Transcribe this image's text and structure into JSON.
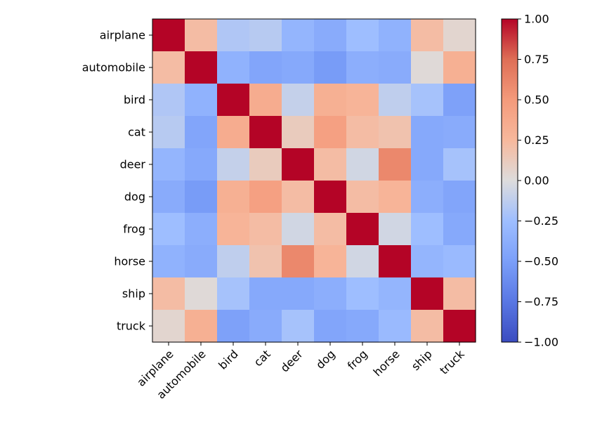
{
  "chart_data": {
    "type": "heatmap",
    "title": "",
    "xlabel": "",
    "ylabel": "",
    "categories": [
      "airplane",
      "automobile",
      "bird",
      "cat",
      "deer",
      "dog",
      "frog",
      "horse",
      "ship",
      "truck"
    ],
    "values": [
      [
        1.0,
        0.22,
        -0.18,
        -0.15,
        -0.32,
        -0.4,
        -0.25,
        -0.35,
        0.22,
        0.05
      ],
      [
        0.22,
        1.0,
        -0.35,
        -0.45,
        -0.42,
        -0.52,
        -0.38,
        -0.4,
        0.02,
        0.32
      ],
      [
        -0.18,
        -0.35,
        1.0,
        0.35,
        -0.1,
        0.32,
        0.28,
        -0.12,
        -0.22,
        -0.48
      ],
      [
        -0.15,
        -0.45,
        0.35,
        1.0,
        0.12,
        0.45,
        0.22,
        0.18,
        -0.42,
        -0.4
      ],
      [
        -0.32,
        -0.42,
        -0.1,
        0.12,
        1.0,
        0.22,
        -0.05,
        0.6,
        -0.42,
        -0.22
      ],
      [
        -0.4,
        -0.52,
        0.32,
        0.45,
        0.22,
        1.0,
        0.22,
        0.28,
        -0.38,
        -0.45
      ],
      [
        -0.25,
        -0.38,
        0.28,
        0.22,
        -0.05,
        0.22,
        1.0,
        -0.05,
        -0.25,
        -0.42
      ],
      [
        -0.35,
        -0.4,
        -0.12,
        0.18,
        0.6,
        0.28,
        -0.05,
        1.0,
        -0.32,
        -0.28
      ],
      [
        0.22,
        0.02,
        -0.22,
        -0.42,
        -0.42,
        -0.38,
        -0.25,
        -0.32,
        1.0,
        0.22
      ],
      [
        0.05,
        0.32,
        -0.48,
        -0.4,
        -0.22,
        -0.45,
        -0.42,
        -0.28,
        0.22,
        1.0
      ]
    ],
    "colorbar": {
      "colormap": "coolwarm",
      "vmin": -1.0,
      "vmax": 1.0,
      "ticks": [
        {
          "value": 1.0,
          "label": "1.00"
        },
        {
          "value": 0.75,
          "label": "0.75"
        },
        {
          "value": 0.5,
          "label": "0.50"
        },
        {
          "value": 0.25,
          "label": "0.25"
        },
        {
          "value": 0.0,
          "label": "0.00"
        },
        {
          "value": -0.25,
          "label": "−0.25"
        },
        {
          "value": -0.5,
          "label": "−0.50"
        },
        {
          "value": -0.75,
          "label": "−0.75"
        },
        {
          "value": -1.0,
          "label": "−1.00"
        }
      ]
    }
  }
}
